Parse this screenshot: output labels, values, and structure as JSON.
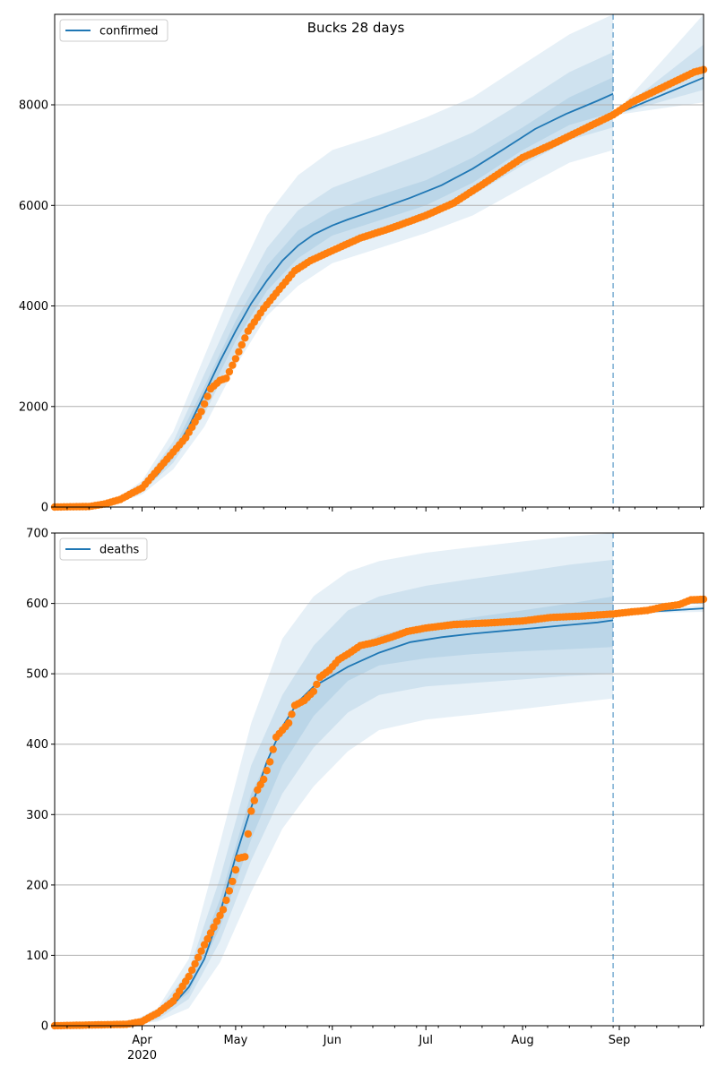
{
  "chart_data": {
    "title": "Bucks 28 days",
    "x_axis": {
      "start": "2020-03-04",
      "end": "2020-09-28",
      "tick_labels": [
        "Apr",
        "May",
        "Jun",
        "Jul",
        "Aug",
        "Sep"
      ],
      "tick_dates": [
        "2020-04-01",
        "2020-05-01",
        "2020-06-01",
        "2020-07-01",
        "2020-08-01",
        "2020-09-01"
      ],
      "year_label": "2020",
      "minor_ticks": "weekly"
    },
    "forecast_start": "2020-08-30",
    "panels": [
      {
        "type": "line",
        "legend": "confirmed",
        "legend_position": "top-left",
        "grid": "horizontal",
        "ylim": [
          0,
          9800
        ],
        "y_ticks": [
          0,
          2000,
          4000,
          6000,
          8000
        ],
        "model_median": {
          "dates": [
            "2020-03-04",
            "2020-03-10",
            "2020-03-16",
            "2020-03-22",
            "2020-03-27",
            "2020-04-01",
            "2020-04-06",
            "2020-04-11",
            "2020-04-16",
            "2020-04-21",
            "2020-04-26",
            "2020-05-01",
            "2020-05-06",
            "2020-05-11",
            "2020-05-16",
            "2020-05-21",
            "2020-05-26",
            "2020-06-01",
            "2020-06-06",
            "2020-06-16",
            "2020-06-26",
            "2020-07-06",
            "2020-07-16",
            "2020-07-26",
            "2020-08-05",
            "2020-08-15",
            "2020-08-25",
            "2020-08-30"
          ],
          "values": [
            0,
            5,
            20,
            60,
            170,
            360,
            650,
            1050,
            1600,
            2250,
            2900,
            3500,
            4050,
            4500,
            4900,
            5200,
            5420,
            5600,
            5720,
            5930,
            6150,
            6400,
            6730,
            7120,
            7520,
            7820,
            8080,
            8220
          ]
        },
        "model_median_forecast": {
          "dates": [
            "2020-08-30",
            "2020-09-28"
          ],
          "values": [
            7790,
            8540
          ]
        },
        "bands": [
          {
            "dates": [
              "2020-03-04",
              "2020-03-22",
              "2020-04-01",
              "2020-04-11",
              "2020-04-21",
              "2020-05-01",
              "2020-05-11",
              "2020-05-21",
              "2020-06-01",
              "2020-06-16",
              "2020-07-01",
              "2020-07-16",
              "2020-08-01",
              "2020-08-16",
              "2020-08-30"
            ],
            "lower": [
              0,
              40,
              250,
              750,
              1600,
              2800,
              3800,
              4400,
              4850,
              5150,
              5450,
              5800,
              6350,
              6850,
              7100
            ],
            "upper": [
              0,
              90,
              520,
              1500,
              3000,
              4500,
              5800,
              6600,
              7100,
              7400,
              7750,
              8150,
              8800,
              9400,
              9800
            ]
          },
          {
            "dates": [
              "2020-03-04",
              "2020-03-22",
              "2020-04-01",
              "2020-04-11",
              "2020-04-21",
              "2020-05-01",
              "2020-05-11",
              "2020-05-21",
              "2020-06-01",
              "2020-06-16",
              "2020-07-01",
              "2020-07-16",
              "2020-08-01",
              "2020-08-16",
              "2020-08-30"
            ],
            "lower": [
              0,
              48,
              300,
              880,
              1850,
              3100,
              4100,
              4750,
              5200,
              5500,
              5800,
              6200,
              6800,
              7300,
              7550
            ],
            "upper": [
              0,
              78,
              450,
              1300,
              2650,
              4000,
              5150,
              5900,
              6350,
              6700,
              7050,
              7450,
              8050,
              8650,
              9050
            ]
          },
          {
            "dates": [
              "2020-03-04",
              "2020-03-22",
              "2020-04-01",
              "2020-04-11",
              "2020-04-21",
              "2020-05-01",
              "2020-05-11",
              "2020-05-21",
              "2020-06-01",
              "2020-06-16",
              "2020-07-01",
              "2020-07-16",
              "2020-08-01",
              "2020-08-16",
              "2020-08-30"
            ],
            "lower": [
              0,
              54,
              330,
              960,
              2050,
              3300,
              4300,
              4950,
              5400,
              5700,
              6000,
              6450,
              7100,
              7600,
              7850
            ],
            "upper": [
              0,
              68,
              400,
              1150,
              2400,
              3700,
              4800,
              5500,
              5900,
              6200,
              6500,
              6950,
              7550,
              8150,
              8550
            ]
          }
        ],
        "forecast_bands": [
          {
            "dates": [
              "2020-08-30",
              "2020-09-28"
            ],
            "lower": [
              7790,
              8050
            ],
            "upper": [
              7790,
              9800
            ]
          },
          {
            "dates": [
              "2020-08-30",
              "2020-09-28"
            ],
            "lower": [
              7790,
              8300
            ],
            "upper": [
              7790,
              9200
            ]
          }
        ],
        "observed": {
          "dates": [
            "2020-03-04",
            "2020-03-15",
            "2020-03-20",
            "2020-03-25",
            "2020-04-01",
            "2020-04-08",
            "2020-04-15",
            "2020-04-20",
            "2020-04-23",
            "2020-04-26",
            "2020-04-28",
            "2020-05-01",
            "2020-05-05",
            "2020-05-10",
            "2020-05-15",
            "2020-05-20",
            "2020-05-25",
            "2020-06-01",
            "2020-06-10",
            "2020-06-20",
            "2020-07-01",
            "2020-07-10",
            "2020-07-20",
            "2020-08-01",
            "2020-08-10",
            "2020-08-20",
            "2020-08-30",
            "2020-09-05",
            "2020-09-10",
            "2020-09-15",
            "2020-09-20",
            "2020-09-25",
            "2020-09-28"
          ],
          "values": [
            0,
            10,
            60,
            150,
            380,
            880,
            1380,
            1900,
            2350,
            2520,
            2560,
            2950,
            3500,
            3950,
            4330,
            4700,
            4900,
            5100,
            5350,
            5550,
            5800,
            6050,
            6450,
            6950,
            7200,
            7500,
            7800,
            8050,
            8200,
            8350,
            8500,
            8650,
            8700
          ]
        }
      },
      {
        "type": "line",
        "legend": "deaths",
        "legend_position": "top-left",
        "grid": "horizontal",
        "ylim": [
          0,
          700
        ],
        "y_ticks": [
          0,
          100,
          200,
          300,
          400,
          500,
          600,
          700
        ],
        "model_median": {
          "dates": [
            "2020-03-04",
            "2020-03-28",
            "2020-04-01",
            "2020-04-06",
            "2020-04-11",
            "2020-04-16",
            "2020-04-21",
            "2020-04-26",
            "2020-05-01",
            "2020-05-06",
            "2020-05-11",
            "2020-05-16",
            "2020-05-21",
            "2020-05-26",
            "2020-06-01",
            "2020-06-06",
            "2020-06-16",
            "2020-06-26",
            "2020-07-06",
            "2020-07-16",
            "2020-07-26",
            "2020-08-05",
            "2020-08-15",
            "2020-08-25",
            "2020-08-30"
          ],
          "values": [
            0,
            2,
            5,
            15,
            30,
            55,
            95,
            160,
            240,
            310,
            375,
            425,
            460,
            482,
            497,
            510,
            530,
            545,
            552,
            557,
            561,
            565,
            569,
            573,
            576
          ]
        },
        "model_median_forecast": {
          "dates": [
            "2020-08-30",
            "2020-09-28"
          ],
          "values": [
            585,
            593
          ]
        },
        "bands": [
          {
            "dates": [
              "2020-03-04",
              "2020-03-28",
              "2020-04-06",
              "2020-04-16",
              "2020-04-26",
              "2020-05-06",
              "2020-05-16",
              "2020-05-26",
              "2020-06-06",
              "2020-06-16",
              "2020-07-01",
              "2020-07-16",
              "2020-08-01",
              "2020-08-16",
              "2020-08-30"
            ],
            "lower": [
              0,
              1,
              6,
              25,
              90,
              190,
              280,
              340,
              390,
              420,
              435,
              442,
              450,
              458,
              465
            ],
            "upper": [
              0,
              4,
              25,
              95,
              260,
              430,
              550,
              610,
              645,
              660,
              672,
              680,
              688,
              695,
              700
            ]
          },
          {
            "dates": [
              "2020-03-04",
              "2020-03-28",
              "2020-04-06",
              "2020-04-16",
              "2020-04-26",
              "2020-05-06",
              "2020-05-16",
              "2020-05-26",
              "2020-06-06",
              "2020-06-16",
              "2020-07-01",
              "2020-07-16",
              "2020-08-01",
              "2020-08-16",
              "2020-08-30"
            ],
            "lower": [
              0,
              1,
              9,
              38,
              120,
              235,
              330,
              395,
              445,
              470,
              482,
              487,
              492,
              497,
              500
            ],
            "upper": [
              0,
              3,
              21,
              78,
              210,
              370,
              470,
              540,
              590,
              610,
              625,
              635,
              645,
              655,
              662
            ]
          },
          {
            "dates": [
              "2020-03-04",
              "2020-03-28",
              "2020-04-06",
              "2020-04-16",
              "2020-04-26",
              "2020-05-06",
              "2020-05-16",
              "2020-05-26",
              "2020-06-06",
              "2020-06-16",
              "2020-07-01",
              "2020-07-16",
              "2020-08-01",
              "2020-08-16",
              "2020-08-30"
            ],
            "lower": [
              0,
              1.5,
              12,
              47,
              140,
              265,
              370,
              440,
              490,
              512,
              522,
              528,
              532,
              535,
              538
            ],
            "upper": [
              0,
              2.5,
              18,
              65,
              180,
              330,
              420,
              485,
              530,
              555,
              570,
              580,
              590,
              600,
              610
            ]
          }
        ],
        "forecast_bands": [
          {
            "dates": [
              "2020-08-30",
              "2020-09-28"
            ],
            "lower": [
              585,
              588
            ],
            "upper": [
              585,
              598
            ]
          }
        ],
        "observed": {
          "dates": [
            "2020-03-04",
            "2020-03-27",
            "2020-04-01",
            "2020-04-06",
            "2020-04-11",
            "2020-04-16",
            "2020-04-21",
            "2020-04-24",
            "2020-04-27",
            "2020-04-30",
            "2020-05-02",
            "2020-05-04",
            "2020-05-06",
            "2020-05-08",
            "2020-05-10",
            "2020-05-12",
            "2020-05-14",
            "2020-05-16",
            "2020-05-18",
            "2020-05-20",
            "2020-05-23",
            "2020-05-26",
            "2020-05-28",
            "2020-05-31",
            "2020-06-03",
            "2020-06-06",
            "2020-06-10",
            "2020-06-15",
            "2020-06-20",
            "2020-06-25",
            "2020-07-01",
            "2020-07-10",
            "2020-07-20",
            "2020-08-01",
            "2020-08-10",
            "2020-08-20",
            "2020-08-30",
            "2020-09-05",
            "2020-09-10",
            "2020-09-15",
            "2020-09-20",
            "2020-09-24",
            "2020-09-28"
          ],
          "values": [
            0,
            2,
            6,
            18,
            35,
            70,
            115,
            140,
            165,
            205,
            238,
            240,
            305,
            335,
            350,
            375,
            410,
            420,
            430,
            455,
            462,
            475,
            495,
            505,
            520,
            528,
            540,
            545,
            552,
            560,
            565,
            570,
            572,
            575,
            580,
            582,
            585,
            588,
            590,
            595,
            598,
            605,
            606
          ]
        }
      }
    ]
  },
  "colors": {
    "model_line": "#1f77b4",
    "band": "#1f77b4",
    "observed_points": "#ff7f0e",
    "forecast_marker": "#1f77b4",
    "grid": "#b0b0b0"
  }
}
